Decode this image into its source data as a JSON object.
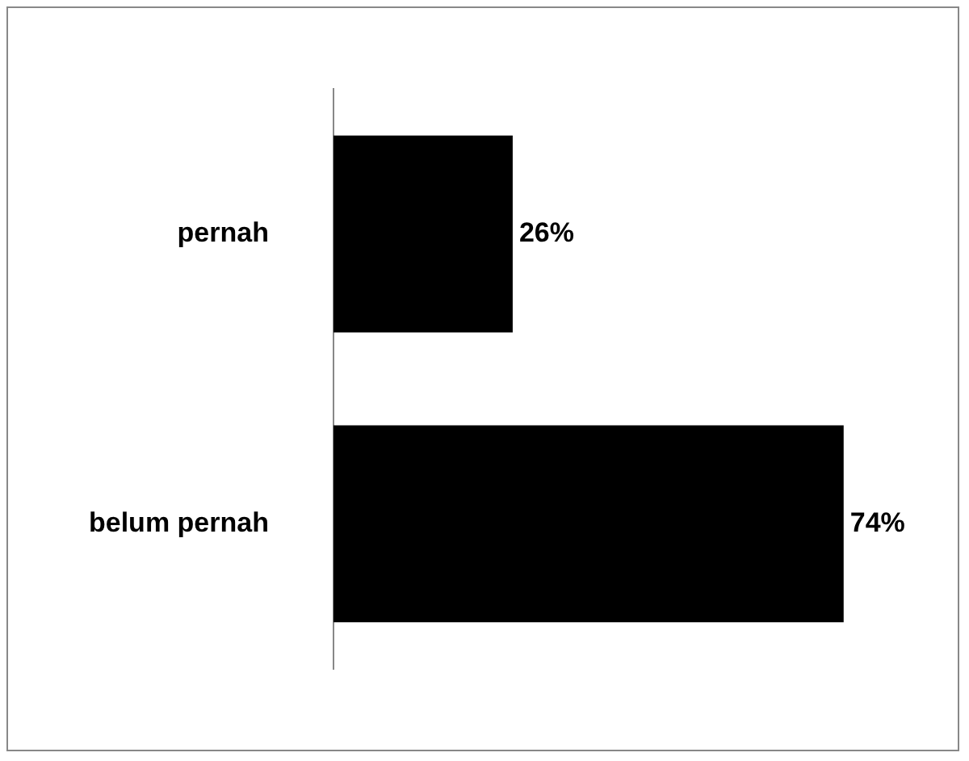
{
  "chart_data": {
    "type": "bar",
    "orientation": "horizontal",
    "categories": [
      "pernah",
      "belum pernah"
    ],
    "values": [
      26,
      74
    ],
    "value_labels": [
      "26%",
      "74%"
    ],
    "color": "#000000",
    "legend": false
  }
}
